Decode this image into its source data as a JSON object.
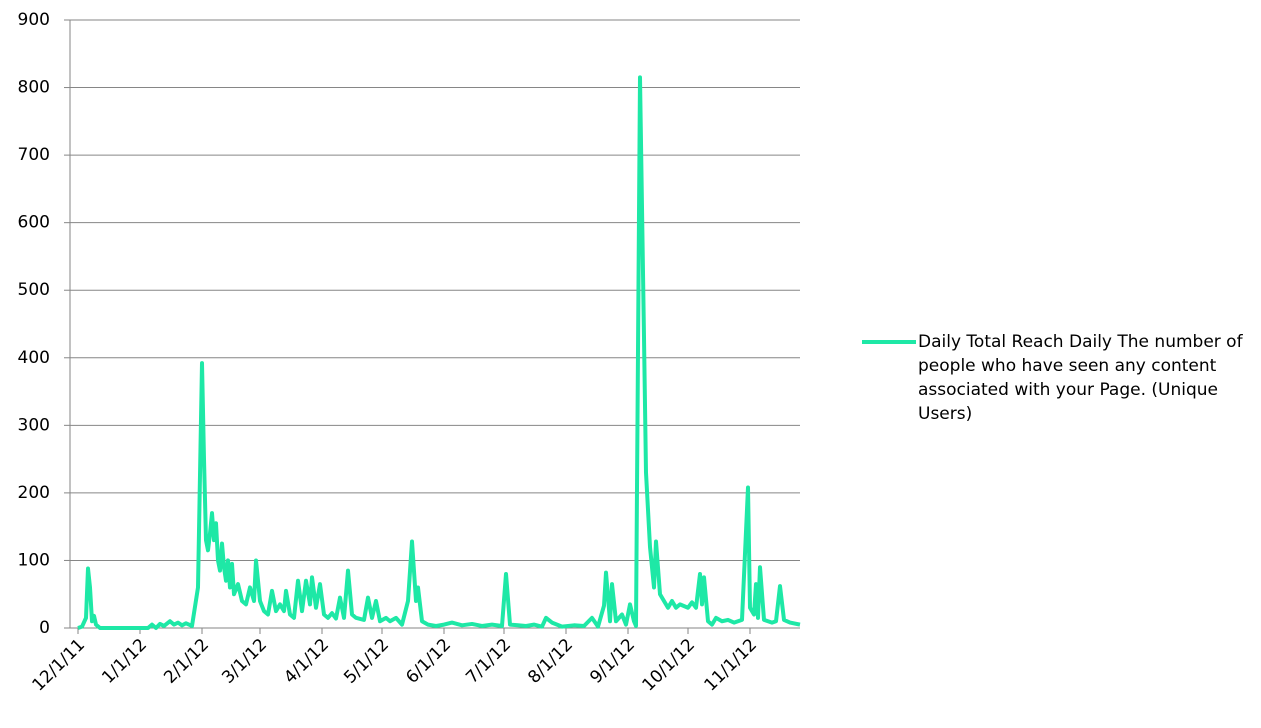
{
  "chart_data": {
    "type": "line",
    "x": [
      "2011-12-01",
      "2011-12-03",
      "2011-12-05",
      "2011-12-06",
      "2011-12-07",
      "2011-12-08",
      "2011-12-09",
      "2011-12-10",
      "2011-12-12",
      "2012-01-05",
      "2012-01-07",
      "2012-01-09",
      "2012-01-11",
      "2012-01-13",
      "2012-01-16",
      "2012-01-18",
      "2012-01-20",
      "2012-01-22",
      "2012-01-24",
      "2012-01-27",
      "2012-01-30",
      "2012-02-01",
      "2012-02-02",
      "2012-02-03",
      "2012-02-04",
      "2012-02-05",
      "2012-02-06",
      "2012-02-07",
      "2012-02-08",
      "2012-02-09",
      "2012-02-10",
      "2012-02-11",
      "2012-02-12",
      "2012-02-13",
      "2012-02-14",
      "2012-02-15",
      "2012-02-16",
      "2012-02-17",
      "2012-02-19",
      "2012-02-21",
      "2012-02-23",
      "2012-02-25",
      "2012-02-27",
      "2012-02-28",
      "2012-03-01",
      "2012-03-03",
      "2012-03-05",
      "2012-03-07",
      "2012-03-09",
      "2012-03-11",
      "2012-03-13",
      "2012-03-14",
      "2012-03-16",
      "2012-03-18",
      "2012-03-20",
      "2012-03-22",
      "2012-03-24",
      "2012-03-26",
      "2012-03-27",
      "2012-03-29",
      "2012-03-31",
      "2012-04-02",
      "2012-04-04",
      "2012-04-06",
      "2012-04-08",
      "2012-04-10",
      "2012-04-12",
      "2012-04-14",
      "2012-04-16",
      "2012-04-18",
      "2012-04-22",
      "2012-04-24",
      "2012-04-26",
      "2012-04-28",
      "2012-04-30",
      "2012-05-03",
      "2012-05-05",
      "2012-05-08",
      "2012-05-11",
      "2012-05-14",
      "2012-05-16",
      "2012-05-18",
      "2012-05-19",
      "2012-05-21",
      "2012-05-24",
      "2012-05-28",
      "2012-06-01",
      "2012-06-05",
      "2012-06-10",
      "2012-06-15",
      "2012-06-20",
      "2012-06-25",
      "2012-06-30",
      "2012-07-02",
      "2012-07-04",
      "2012-07-08",
      "2012-07-12",
      "2012-07-16",
      "2012-07-20",
      "2012-07-22",
      "2012-07-25",
      "2012-07-30",
      "2012-08-05",
      "2012-08-10",
      "2012-08-14",
      "2012-08-17",
      "2012-08-20",
      "2012-08-21",
      "2012-08-23",
      "2012-08-24",
      "2012-08-26",
      "2012-08-29",
      "2012-08-31",
      "2012-09-02",
      "2012-09-04",
      "2012-09-05",
      "2012-09-07",
      "2012-09-09",
      "2012-09-10",
      "2012-09-12",
      "2012-09-14",
      "2012-09-15",
      "2012-09-17",
      "2012-09-19",
      "2012-09-21",
      "2012-09-23",
      "2012-09-25",
      "2012-09-27",
      "2012-10-01",
      "2012-10-03",
      "2012-10-05",
      "2012-10-07",
      "2012-10-08",
      "2012-10-09",
      "2012-10-11",
      "2012-10-13",
      "2012-10-15",
      "2012-10-18",
      "2012-10-21",
      "2012-10-24",
      "2012-10-28",
      "2012-10-31",
      "2012-11-01",
      "2012-11-03",
      "2012-11-04",
      "2012-11-05",
      "2012-11-06",
      "2012-11-08",
      "2012-11-12",
      "2012-11-14",
      "2012-11-16",
      "2012-11-18",
      "2012-11-21",
      "2012-11-26"
    ],
    "series": [
      {
        "name": "Daily Total Reach Daily The number of people who have seen any content associated with your Page. (Unique Users)",
        "color": "#1ee8a6",
        "values": [
          0,
          2,
          15,
          88,
          60,
          10,
          18,
          5,
          0,
          0,
          5,
          0,
          6,
          3,
          10,
          5,
          8,
          4,
          7,
          3,
          60,
          392,
          250,
          130,
          115,
          140,
          170,
          130,
          155,
          100,
          85,
          125,
          90,
          70,
          100,
          60,
          95,
          50,
          65,
          40,
          35,
          60,
          40,
          100,
          40,
          25,
          20,
          55,
          25,
          35,
          25,
          55,
          20,
          15,
          70,
          25,
          70,
          35,
          75,
          30,
          65,
          20,
          15,
          22,
          14,
          45,
          15,
          85,
          20,
          15,
          12,
          45,
          15,
          40,
          10,
          15,
          10,
          15,
          5,
          40,
          128,
          40,
          60,
          10,
          5,
          3,
          5,
          8,
          4,
          6,
          3,
          5,
          3,
          80,
          5,
          4,
          3,
          5,
          2,
          15,
          8,
          2,
          4,
          3,
          15,
          2,
          33,
          82,
          10,
          65,
          10,
          20,
          5,
          35,
          10,
          3,
          815,
          430,
          230,
          120,
          60,
          128,
          50,
          40,
          30,
          40,
          30,
          35,
          30,
          38,
          30,
          80,
          35,
          75,
          10,
          5,
          15,
          10,
          12,
          8,
          12,
          208,
          30,
          20,
          65,
          15,
          90,
          12,
          8,
          10,
          62,
          12,
          8,
          5
        ]
      }
    ],
    "xlim": [
      "2011-11-27",
      "2012-11-26"
    ],
    "xticks": [
      {
        "value": "2011-12-01",
        "label": "12/1/11"
      },
      {
        "value": "2012-01-01",
        "label": "1/1/12"
      },
      {
        "value": "2012-02-01",
        "label": "2/1/12"
      },
      {
        "value": "2012-03-01",
        "label": "3/1/12"
      },
      {
        "value": "2012-04-01",
        "label": "4/1/12"
      },
      {
        "value": "2012-05-01",
        "label": "5/1/12"
      },
      {
        "value": "2012-06-01",
        "label": "6/1/12"
      },
      {
        "value": "2012-07-01",
        "label": "7/1/12"
      },
      {
        "value": "2012-08-01",
        "label": "8/1/12"
      },
      {
        "value": "2012-09-01",
        "label": "9/1/12"
      },
      {
        "value": "2012-10-01",
        "label": "10/1/12"
      },
      {
        "value": "2012-11-01",
        "label": "11/1/12"
      }
    ],
    "ylim": [
      0,
      900
    ],
    "yticks": [
      0,
      100,
      200,
      300,
      400,
      500,
      600,
      700,
      800,
      900
    ],
    "grid": true,
    "legend": "right"
  }
}
